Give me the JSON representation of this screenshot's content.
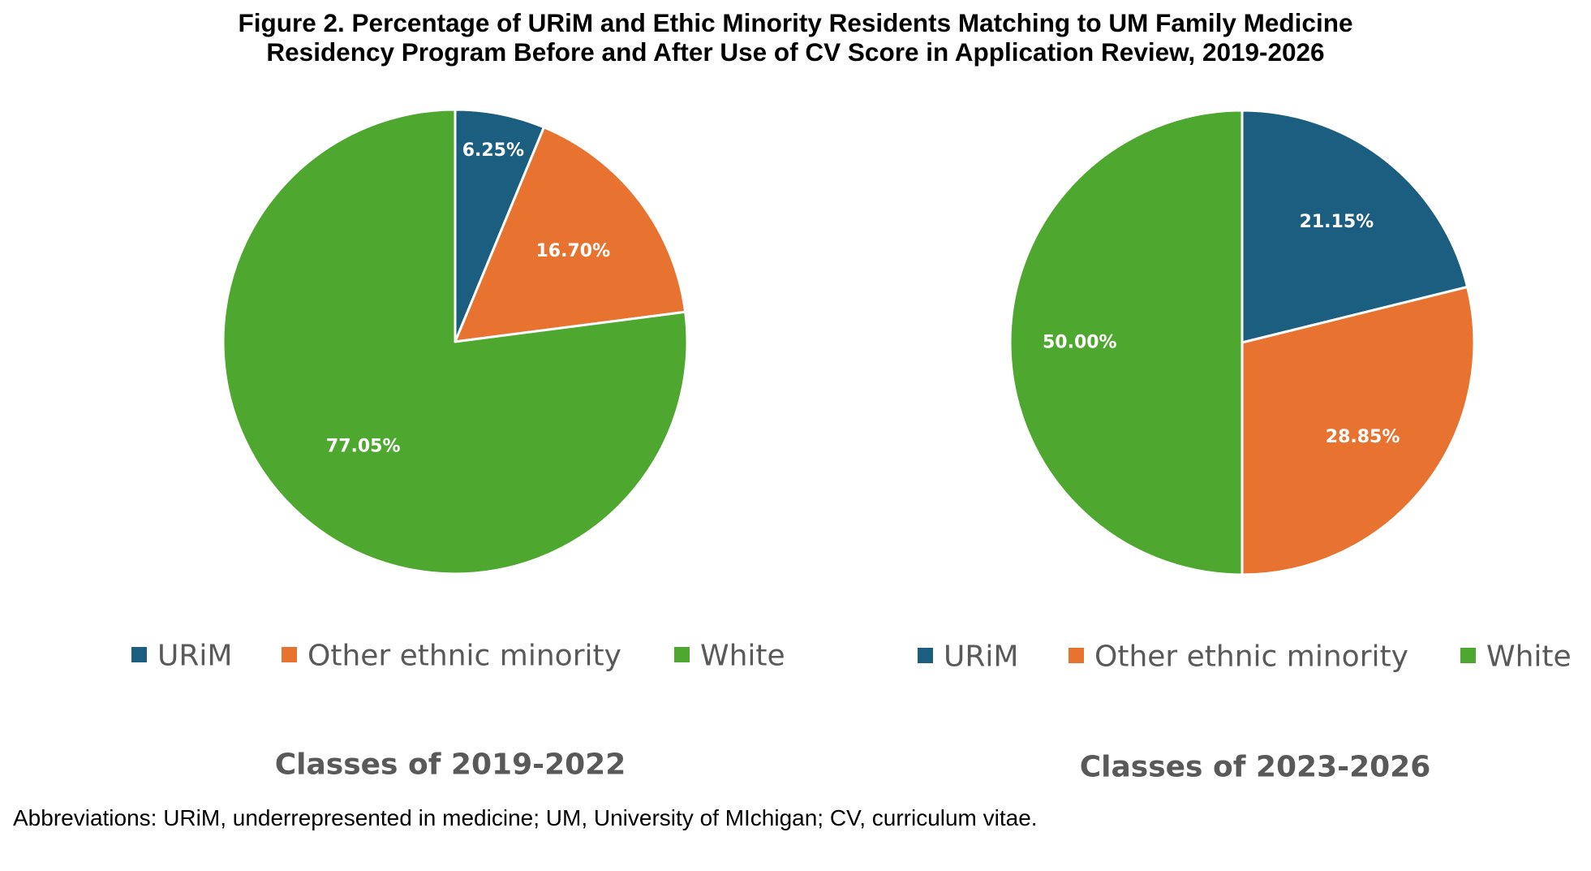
{
  "figure": {
    "title_line1": "Figure 2. Percentage of URiM and Ethic Minority Residents Matching to UM Family Medicine",
    "title_line2": "Residency Program Before and After Use of CV Score in Application Review, 2019-2026",
    "footnote": "Abbreviations: URiM, underrepresented in medicine; UM, University of MIchigan; CV, curriculum vitae."
  },
  "colors": {
    "URiM": "#1b5e80",
    "Other ethnic minority": "#e87331",
    "White": "#4ea72e"
  },
  "chart_data": [
    {
      "type": "pie",
      "title": "Classes of 2019-2022",
      "legend": [
        "URiM",
        "Other ethnic minority",
        "White"
      ],
      "legend_position": "bottom",
      "slices": [
        {
          "name": "URiM",
          "value": 6.25,
          "label": "6.25%"
        },
        {
          "name": "Other ethnic minority",
          "value": 16.7,
          "label": "16.70%"
        },
        {
          "name": "White",
          "value": 77.05,
          "label": "77.05%"
        }
      ]
    },
    {
      "type": "pie",
      "title": "Classes of 2023-2026",
      "legend": [
        "URiM",
        "Other ethnic minority",
        "White"
      ],
      "legend_position": "bottom",
      "slices": [
        {
          "name": "URiM",
          "value": 21.15,
          "label": "21.15%"
        },
        {
          "name": "Other ethnic minority",
          "value": 28.85,
          "label": "28.85%"
        },
        {
          "name": "White",
          "value": 50.0,
          "label": "50.00%"
        }
      ]
    }
  ]
}
